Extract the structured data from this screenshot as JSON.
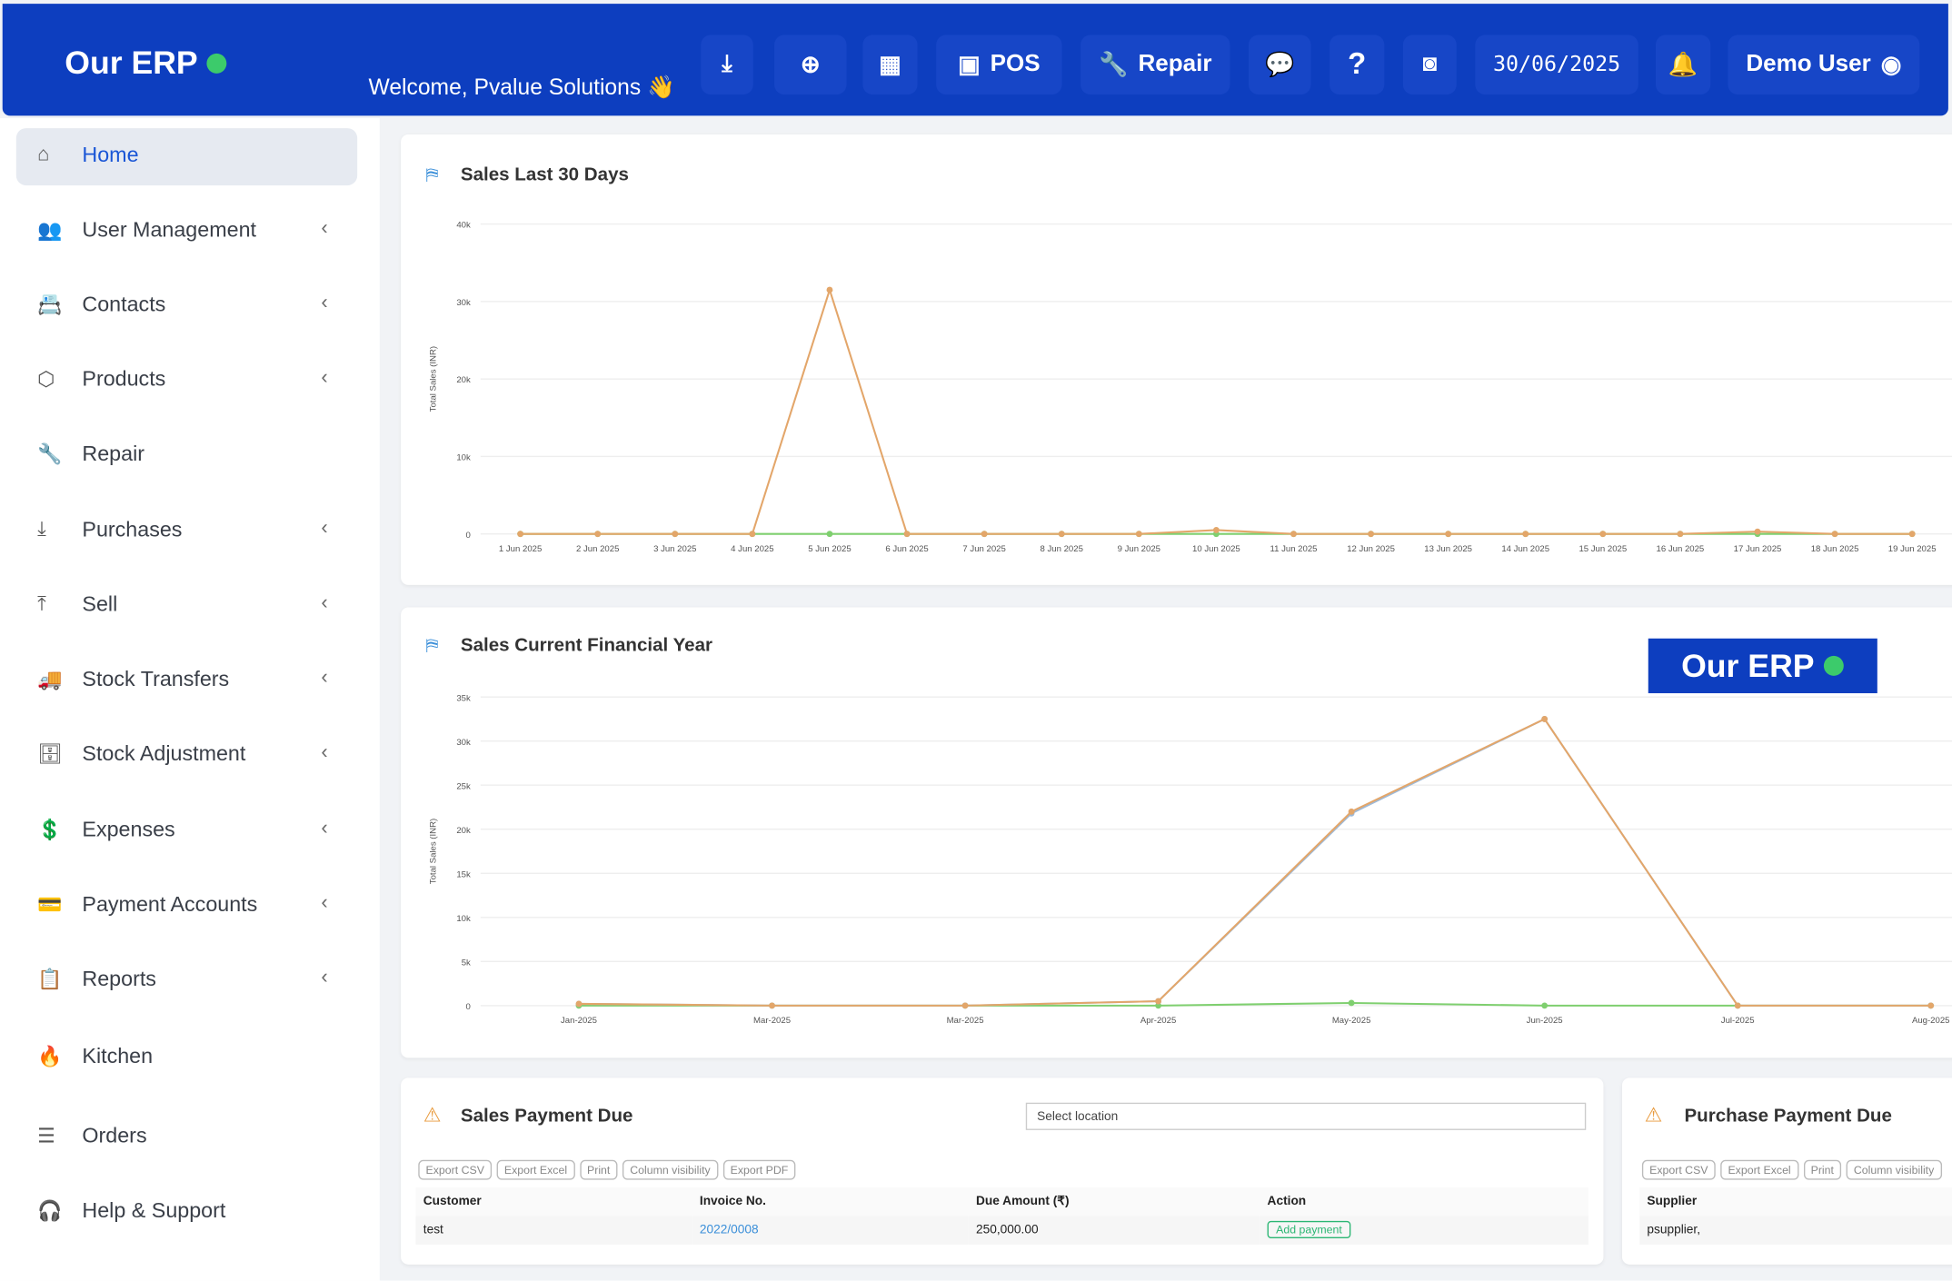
{
  "header": {
    "logo": "Our ERP",
    "welcome": "Welcome, Pvalue Solutions 👋",
    "pos": "POS",
    "repair": "Repair",
    "date": "30/06/2025",
    "user": "Demo User"
  },
  "sidebar": {
    "items": [
      "Home",
      "User Management",
      "Contacts",
      "Products",
      "Repair",
      "Purchases",
      "Sell",
      "Stock Transfers",
      "Stock Adjustment",
      "Expenses",
      "Payment Accounts",
      "Reports",
      "Kitchen",
      "Orders",
      "Help & Support"
    ]
  },
  "chart_data": [
    {
      "type": "line",
      "title": "Sales Last 30 Days",
      "y_label": "Total Sales (INR)",
      "categories": [
        "1 Jun 2025",
        "2 Jun 2025",
        "3 Jun 2025",
        "4 Jun 2025",
        "5 Jun 2025",
        "6 Jun 2025",
        "7 Jun 2025",
        "8 Jun 2025",
        "9 Jun 2025",
        "10 Jun 2025",
        "11 Jun 2025",
        "12 Jun 2025",
        "13 Jun 2025",
        "14 Jun 2025",
        "15 Jun 2025",
        "16 Jun 2025",
        "17 Jun 2025",
        "18 Jun 2025",
        "19 Jun 2025"
      ],
      "series": [
        {
          "color": "#7fcf6f",
          "values": [
            0,
            0,
            0,
            0,
            0,
            0,
            0,
            0,
            0,
            0,
            0,
            0,
            0,
            0,
            0,
            0,
            0,
            0,
            0
          ]
        },
        {
          "color": "#e3a66a",
          "values": [
            0,
            0,
            0,
            0,
            31500,
            0,
            0,
            0,
            0,
            500,
            0,
            0,
            0,
            0,
            0,
            0,
            300,
            0,
            0
          ]
        }
      ],
      "ylim": [
        0,
        40000
      ],
      "yticks": [
        0,
        {
          "value": 10000,
          "label": "10k"
        },
        {
          "value": 20000,
          "label": "20k"
        },
        {
          "value": 30000,
          "label": "30k"
        },
        {
          "value": 40000,
          "label": "40k"
        }
      ],
      "grid": true
    },
    {
      "type": "line",
      "title": "Sales Current Financial Year",
      "y_label": "Total Sales (INR)",
      "categories": [
        "Jan-2025",
        "Mar-2025",
        "Mar-2025",
        "Apr-2025",
        "May-2025",
        "Jun-2025",
        "Jul-2025",
        "Aug-2025"
      ],
      "series": [
        {
          "color": "#7fcf6f",
          "values": [
            0,
            0,
            0,
            0,
            300,
            0,
            0,
            0
          ]
        },
        {
          "color": "#9db9d8",
          "values": [
            200,
            0,
            0,
            500,
            21800,
            32500,
            0,
            0
          ]
        },
        {
          "color": "#e3a66a",
          "values": [
            200,
            0,
            0,
            500,
            22000,
            32500,
            0,
            0
          ]
        }
      ],
      "ylim": [
        0,
        35000
      ],
      "yticks": [
        0,
        {
          "value": 5000,
          "label": "5k"
        },
        {
          "value": 10000,
          "label": "10k"
        },
        {
          "value": 15000,
          "label": "15k"
        },
        {
          "value": 20000,
          "label": "20k"
        },
        {
          "value": 25000,
          "label": "25k"
        },
        {
          "value": 30000,
          "label": "30k"
        },
        {
          "value": 35000,
          "label": "35k"
        }
      ],
      "grid": true
    }
  ],
  "badge": "Our ERP",
  "sales_payment_due": {
    "title": "Sales Payment Due",
    "select": "Select location",
    "buttons": [
      "Export CSV",
      "Export Excel",
      "Print",
      "Column visibility",
      "Export PDF"
    ],
    "columns": [
      "Customer",
      "Invoice No.",
      "Due Amount (₹)",
      "Action"
    ],
    "rows": [
      [
        "test",
        "2022/0008",
        "250,000.00",
        "Add payment"
      ]
    ]
  },
  "purchase_payment_due": {
    "title": "Purchase Payment Due",
    "buttons": [
      "Export CSV",
      "Export Excel",
      "Print",
      "Column visibility"
    ],
    "columns": [
      "Supplier"
    ],
    "rows": [
      [
        "psupplier,"
      ]
    ]
  }
}
